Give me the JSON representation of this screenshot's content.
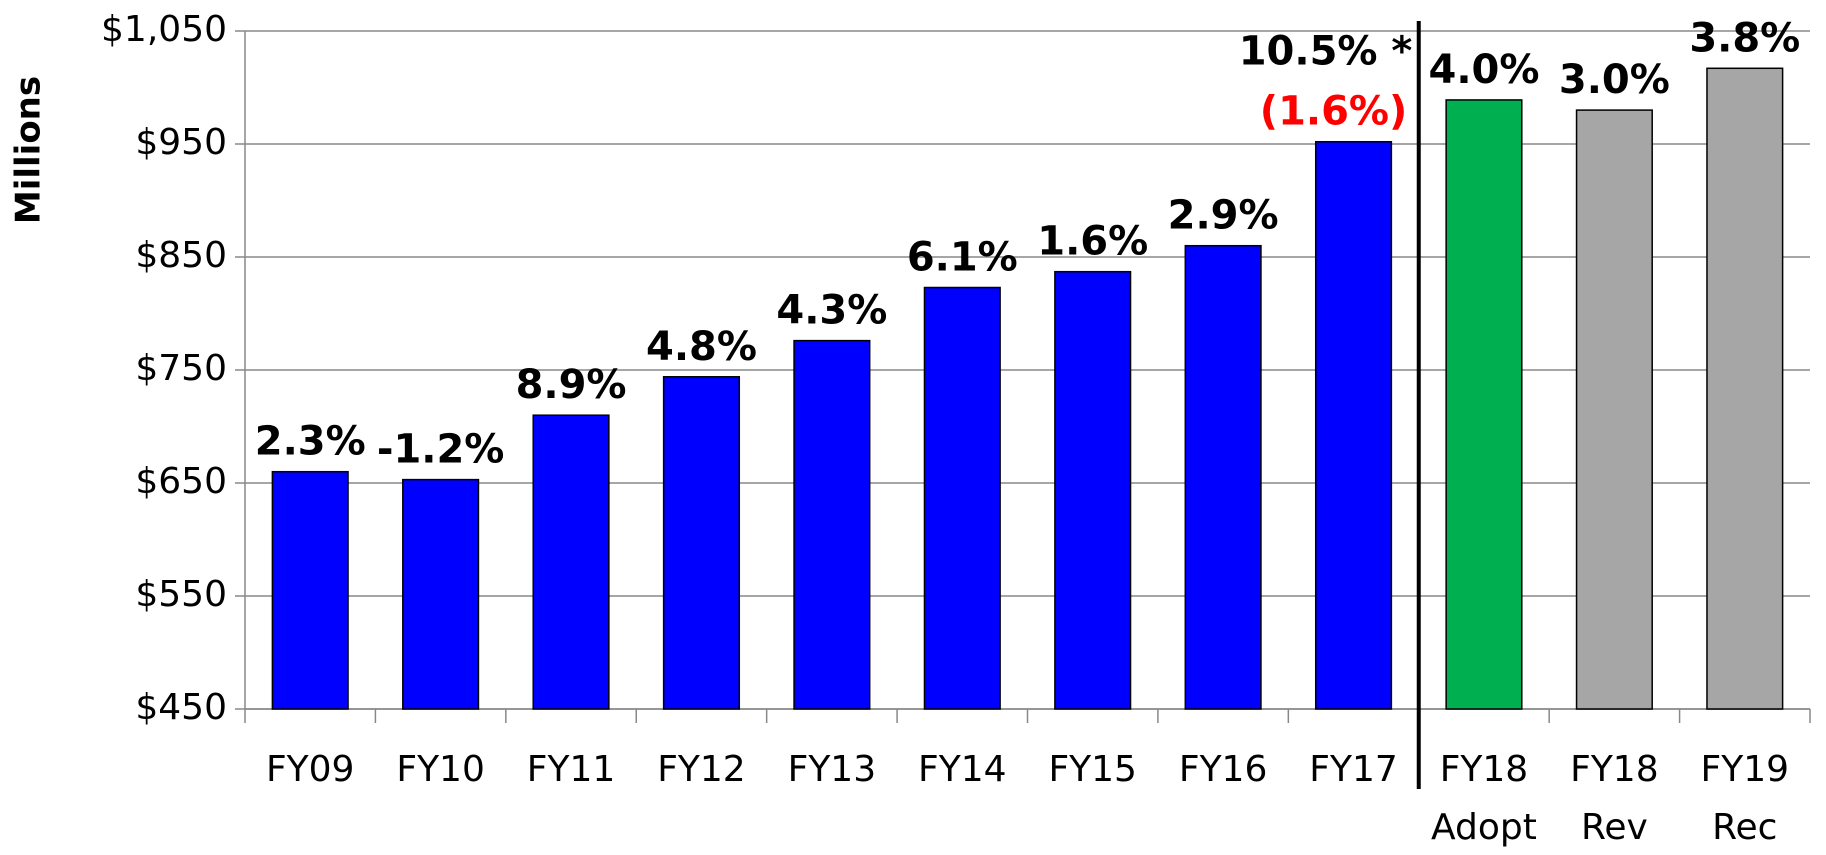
{
  "chart_data": {
    "type": "bar",
    "y_label": "Millions",
    "categories": [
      "FY09",
      "FY10",
      "FY11",
      "FY12",
      "FY13",
      "FY14",
      "FY15",
      "FY16",
      "FY17",
      "FY18 Adopt",
      "FY18 Rev",
      "FY19 Rec"
    ],
    "values": [
      660,
      653,
      710,
      744,
      776,
      823,
      837,
      860,
      952,
      989,
      980,
      1017
    ],
    "colors": [
      "#0000ff",
      "#0000ff",
      "#0000ff",
      "#0000ff",
      "#0000ff",
      "#0000ff",
      "#0000ff",
      "#0000ff",
      "#0000ff",
      "#00b050",
      "#a6a6a6",
      "#a6a6a6"
    ],
    "growth_labels": [
      "2.3%",
      "-1.2%",
      "8.9%",
      "4.8%",
      "4.3%",
      "6.1%",
      "1.6%",
      "2.9%",
      "10.5% *",
      "4.0%",
      "3.0%",
      "3.8%"
    ],
    "annotations": [
      {
        "text": "(1.6%)",
        "color": "#ff0000",
        "category": "FY17"
      }
    ],
    "ylim": [
      450,
      1050
    ],
    "yticks": [
      {
        "value": 450,
        "label": "$450"
      },
      {
        "value": 550,
        "label": "$550"
      },
      {
        "value": 650,
        "label": "$650"
      },
      {
        "value": 750,
        "label": "$750"
      },
      {
        "value": 850,
        "label": "$850"
      },
      {
        "value": 950,
        "label": "$950"
      },
      {
        "value": 1050,
        "label": "$1,050"
      }
    ],
    "grid": true
  }
}
